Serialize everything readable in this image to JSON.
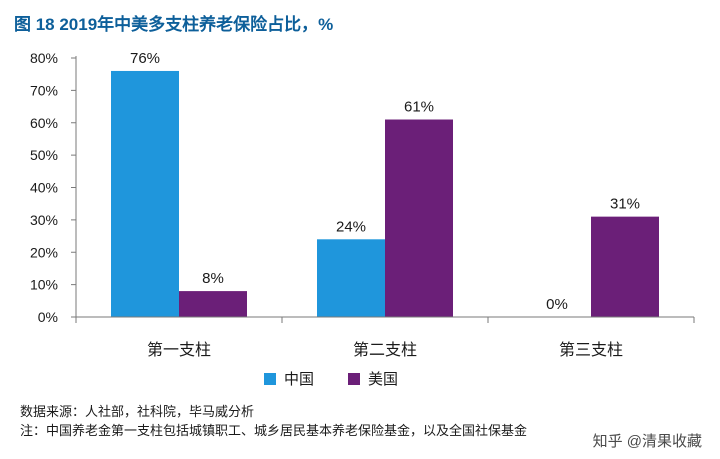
{
  "title": "图 18 2019年中美多支柱养老保险占比，%",
  "chart_data": {
    "type": "bar",
    "title": "图 18 2019年中美多支柱养老保险占比，%",
    "categories": [
      "第一支柱",
      "第二支柱",
      "第三支柱"
    ],
    "series": [
      {
        "name": "中国",
        "color": "#1f96dc",
        "values": [
          76,
          24,
          0
        ],
        "labels": [
          "76%",
          "24%",
          "0%"
        ]
      },
      {
        "name": "美国",
        "color": "#6b1f78",
        "values": [
          8,
          61,
          31
        ],
        "labels": [
          "8%",
          "61%",
          "31%"
        ]
      }
    ],
    "ylim": [
      0,
      80
    ],
    "yticks": [
      "0%",
      "10%",
      "20%",
      "30%",
      "40%",
      "50%",
      "60%",
      "70%",
      "80%"
    ],
    "xlabel": "",
    "ylabel": "",
    "legend": "bottom-center"
  },
  "notes": {
    "source": "数据来源：人社部，社科院，毕马威分析",
    "footnote": "注：中国养老金第一支柱包括城镇职工、城乡居民基本养老保险基金，以及全国社保基金"
  },
  "watermark": "知乎 @清果收藏"
}
